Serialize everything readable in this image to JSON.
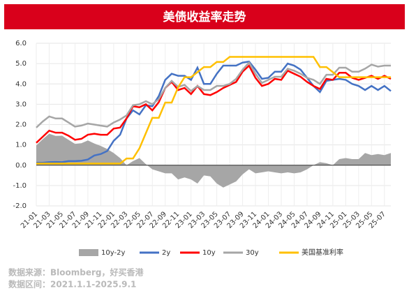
{
  "chart_data": {
    "type": "line",
    "title": "美债收益率走势",
    "categories": [
      "21-01",
      null,
      "21-03",
      null,
      "21-05",
      null,
      "21-07",
      null,
      "21-09",
      null,
      "21-11",
      null,
      "22-01",
      null,
      "22-03",
      null,
      "22-05",
      null,
      "22-07",
      null,
      "22-09",
      null,
      "22-11",
      null,
      "23-01",
      null,
      "23-03",
      null,
      "23-05",
      null,
      "23-07",
      null,
      "23-09",
      null,
      "23-11",
      null,
      "24-01",
      null,
      "24-03",
      null,
      "24-05",
      null,
      "24-07",
      null,
      "24-09",
      null,
      "24-11",
      null,
      "25-01",
      null,
      "25-03",
      null,
      "25-05",
      null,
      "25-07",
      null
    ],
    "series": [
      {
        "name": "10y-2y",
        "kind": "area",
        "color": "#a6a6a6",
        "values": [
          0.98,
          1.28,
          1.55,
          1.44,
          1.45,
          1.25,
          1.05,
          1.08,
          1.22,
          1.07,
          0.95,
          0.8,
          0.6,
          0.35,
          0.0,
          0.2,
          0.35,
          0.05,
          -0.2,
          -0.3,
          -0.4,
          -0.4,
          -0.7,
          -0.6,
          -0.7,
          -0.9,
          -0.5,
          -0.55,
          -0.9,
          -1.1,
          -0.95,
          -0.8,
          -0.45,
          -0.2,
          -0.4,
          -0.35,
          -0.3,
          -0.35,
          -0.4,
          -0.35,
          -0.4,
          -0.35,
          -0.2,
          0.0,
          0.15,
          0.1,
          0.0,
          0.3,
          0.35,
          0.3,
          0.3,
          0.6,
          0.5,
          0.55,
          0.5,
          0.6
        ]
      },
      {
        "name": "2y",
        "kind": "line",
        "color": "#4472c4",
        "values": [
          0.12,
          0.12,
          0.15,
          0.16,
          0.15,
          0.2,
          0.2,
          0.22,
          0.28,
          0.48,
          0.55,
          0.7,
          1.2,
          1.5,
          2.3,
          2.7,
          2.5,
          2.95,
          2.9,
          3.4,
          4.2,
          4.5,
          4.4,
          4.4,
          4.2,
          4.8,
          4.0,
          4.0,
          4.5,
          4.9,
          4.9,
          4.9,
          5.05,
          5.1,
          4.7,
          4.25,
          4.3,
          4.6,
          4.6,
          5.0,
          4.9,
          4.7,
          4.3,
          3.9,
          3.6,
          4.15,
          4.2,
          4.25,
          4.2,
          4.0,
          3.9,
          3.7,
          3.9,
          3.7,
          3.9,
          3.65
        ]
      },
      {
        "name": "10y",
        "kind": "line",
        "color": "#ff0000",
        "values": [
          1.1,
          1.4,
          1.7,
          1.6,
          1.6,
          1.45,
          1.25,
          1.3,
          1.5,
          1.55,
          1.5,
          1.5,
          1.8,
          1.85,
          2.3,
          2.9,
          2.85,
          3.0,
          2.7,
          3.1,
          3.8,
          4.1,
          3.7,
          3.8,
          3.5,
          3.9,
          3.5,
          3.45,
          3.6,
          3.8,
          3.95,
          4.1,
          4.6,
          4.9,
          4.3,
          3.9,
          4.0,
          4.25,
          4.2,
          4.65,
          4.5,
          4.35,
          4.1,
          3.9,
          3.75,
          4.25,
          4.2,
          4.55,
          4.55,
          4.3,
          4.2,
          4.3,
          4.4,
          4.25,
          4.4,
          4.25
        ]
      },
      {
        "name": "30y",
        "kind": "line",
        "color": "#a6a6a6",
        "values": [
          1.85,
          2.15,
          2.4,
          2.3,
          2.3,
          2.1,
          1.9,
          1.95,
          2.05,
          2.0,
          1.95,
          1.9,
          2.1,
          2.25,
          2.45,
          2.95,
          3.0,
          3.15,
          3.0,
          3.25,
          3.8,
          4.15,
          3.85,
          3.95,
          3.65,
          3.9,
          3.7,
          3.7,
          3.9,
          3.9,
          4.0,
          4.25,
          4.7,
          5.05,
          4.5,
          4.05,
          4.2,
          4.35,
          4.35,
          4.75,
          4.65,
          4.5,
          4.3,
          4.2,
          4.0,
          4.45,
          4.45,
          4.8,
          4.8,
          4.6,
          4.6,
          4.75,
          4.95,
          4.85,
          4.9,
          4.9
        ]
      },
      {
        "name": "美国基准利率",
        "kind": "line",
        "color": "#ffc000",
        "values": [
          0.08,
          0.08,
          0.08,
          0.08,
          0.08,
          0.08,
          0.08,
          0.08,
          0.08,
          0.08,
          0.08,
          0.08,
          0.08,
          0.08,
          0.33,
          0.33,
          0.83,
          1.58,
          2.33,
          2.33,
          3.08,
          3.08,
          3.83,
          4.33,
          4.33,
          4.58,
          4.83,
          4.83,
          5.08,
          5.08,
          5.33,
          5.33,
          5.33,
          5.33,
          5.33,
          5.33,
          5.33,
          5.33,
          5.33,
          5.33,
          5.33,
          5.33,
          5.33,
          5.33,
          4.83,
          4.83,
          4.58,
          4.33,
          4.33,
          4.33,
          4.33,
          4.33,
          4.33,
          4.33,
          4.33,
          4.33
        ]
      }
    ],
    "ylim": [
      -2,
      6
    ],
    "yticks": [
      {
        "value": -2,
        "label": "-2.0"
      },
      {
        "value": -1,
        "label": "-1.0"
      },
      {
        "value": 0,
        "label": "0.0"
      },
      {
        "value": 1,
        "label": "1.0"
      },
      {
        "value": 2,
        "label": "2.0"
      },
      {
        "value": 3,
        "label": "3.0"
      },
      {
        "value": 4,
        "label": "4.0"
      },
      {
        "value": 5,
        "label": "5.0"
      },
      {
        "value": 6,
        "label": "6.0"
      }
    ],
    "grid": true,
    "footnotes": [
      "数据来源：Bloomberg，好买香港",
      "数据区间：2021.1.1-2025.9.1"
    ]
  }
}
